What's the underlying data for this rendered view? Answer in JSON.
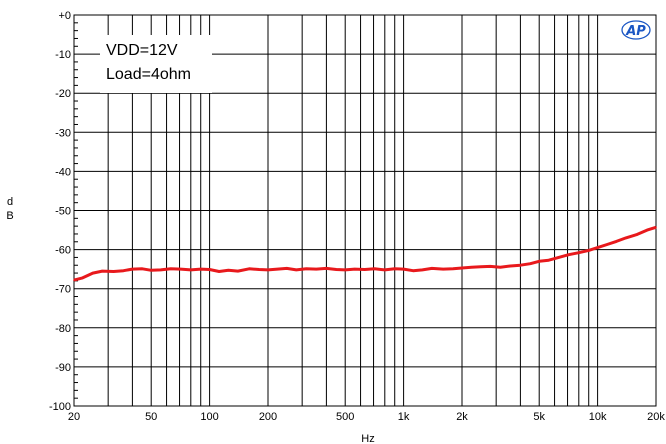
{
  "chart_data": {
    "type": "line",
    "xlabel": "Hz",
    "ylabel_lines": [
      "d",
      "B"
    ],
    "x_scale": "log",
    "xlim": [
      20,
      20000
    ],
    "ylim": [
      -100,
      0
    ],
    "grid": true,
    "x_tick_labels": [
      {
        "value": 20,
        "label": "20"
      },
      {
        "value": 50,
        "label": "50"
      },
      {
        "value": 100,
        "label": "100"
      },
      {
        "value": 200,
        "label": "200"
      },
      {
        "value": 500,
        "label": "500"
      },
      {
        "value": 1000,
        "label": "1k"
      },
      {
        "value": 2000,
        "label": "2k"
      },
      {
        "value": 5000,
        "label": "5k"
      },
      {
        "value": 10000,
        "label": "10k"
      },
      {
        "value": 20000,
        "label": "20k"
      }
    ],
    "y_tick_labels": [
      {
        "value": 0,
        "label": "+0"
      },
      {
        "value": -10,
        "label": "-10"
      },
      {
        "value": -20,
        "label": "-20"
      },
      {
        "value": -30,
        "label": "-30"
      },
      {
        "value": -40,
        "label": "-40"
      },
      {
        "value": -50,
        "label": "-50"
      },
      {
        "value": -60,
        "label": "-60"
      },
      {
        "value": -70,
        "label": "-70"
      },
      {
        "value": -80,
        "label": "-80"
      },
      {
        "value": -90,
        "label": "-90"
      },
      {
        "value": -100,
        "label": "-100"
      }
    ],
    "annotation_lines": [
      "VDD=12V",
      "Load=4ohm"
    ],
    "logo_text": "AP",
    "series": [
      {
        "color": "#e8191c",
        "x": [
          20,
          22,
          25,
          28,
          32,
          36,
          40,
          45,
          50,
          56,
          63,
          71,
          80,
          90,
          100,
          112,
          125,
          140,
          160,
          180,
          200,
          224,
          250,
          280,
          315,
          355,
          400,
          450,
          500,
          560,
          630,
          710,
          800,
          900,
          1000,
          1120,
          1250,
          1400,
          1600,
          1800,
          2000,
          2240,
          2500,
          2800,
          3150,
          3550,
          4000,
          4500,
          5000,
          5600,
          6300,
          7100,
          8000,
          9000,
          10000,
          11200,
          12500,
          14000,
          16000,
          18000,
          20000
        ],
        "y": [
          -67.8,
          -67.3,
          -66.0,
          -65.5,
          -65.6,
          -65.4,
          -65.0,
          -64.9,
          -65.3,
          -65.2,
          -64.9,
          -65.0,
          -65.2,
          -65.0,
          -65.1,
          -65.6,
          -65.3,
          -65.5,
          -64.9,
          -65.1,
          -65.2,
          -65.0,
          -64.8,
          -65.2,
          -64.9,
          -65.0,
          -64.8,
          -65.1,
          -65.2,
          -65.0,
          -65.1,
          -64.9,
          -65.2,
          -64.9,
          -65.0,
          -65.4,
          -65.2,
          -64.8,
          -65.0,
          -64.9,
          -64.7,
          -64.5,
          -64.4,
          -64.3,
          -64.5,
          -64.2,
          -64.0,
          -63.6,
          -63.0,
          -62.7,
          -62.0,
          -61.3,
          -60.8,
          -60.2,
          -59.5,
          -58.7,
          -57.9,
          -57.0,
          -56.1,
          -55.0,
          -54.3
        ]
      }
    ]
  }
}
